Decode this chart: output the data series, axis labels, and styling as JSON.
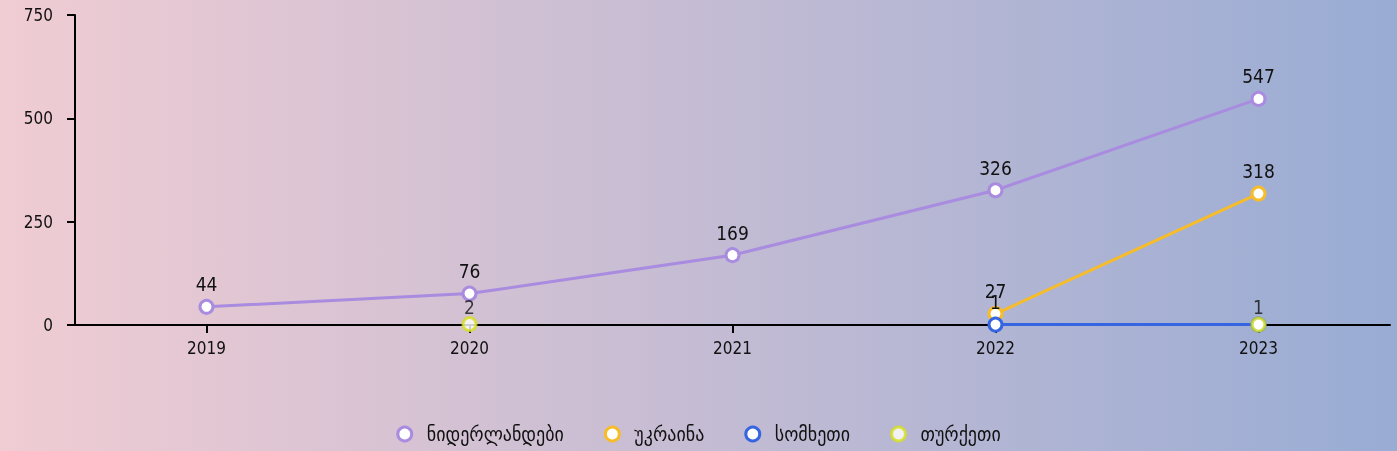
{
  "chart_data": {
    "type": "line",
    "categories": [
      "2019",
      "2020",
      "2021",
      "2022",
      "2023"
    ],
    "series": [
      {
        "name": "ნიდერლანდები",
        "color": "#a98be0",
        "values": [
          44,
          76,
          169,
          326,
          547
        ]
      },
      {
        "name": "უკრაინა",
        "color": "#f7bc2a",
        "values": [
          null,
          null,
          null,
          27,
          318
        ]
      },
      {
        "name": "სომხეთი",
        "color": "#3565e0",
        "values": [
          null,
          null,
          null,
          1,
          1
        ],
        "value_labels": [
          null,
          null,
          null,
          "1",
          null
        ]
      },
      {
        "name": "თურქეთი",
        "type": "scatter",
        "color": "#d4e01a",
        "values": [
          null,
          2,
          null,
          null,
          1
        ]
      }
    ],
    "ylim": [
      0,
      750
    ],
    "yticks": [
      0,
      250,
      500,
      750
    ],
    "grid": false,
    "legend": "bottom",
    "marker": "circle",
    "line_style": "solid",
    "data_labels": true
  }
}
